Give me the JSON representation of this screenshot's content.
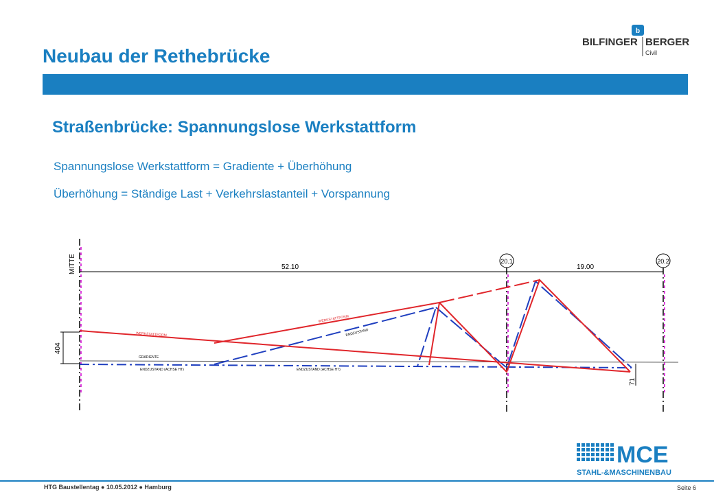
{
  "header": {
    "title": "Neubau der Rethebrücke",
    "logo_top": "BILFINGER",
    "logo_top2": "BERGER",
    "logo_sub": "Civil"
  },
  "content": {
    "subtitle": "Straßenbrücke: Spannungslose Werkstattform",
    "line1": "Spannungslose Werkstattform = Gradiente + Überhöhung",
    "line2": "Überhöhung = Ständige Last + Verkehrslastanteil + Vorspannung"
  },
  "diagram": {
    "mitte_label": "MITTE",
    "dim_left": "52.10",
    "dim_right": "19.00",
    "axis_201": "20.1",
    "axis_202": "20.2",
    "dim_404": "404",
    "dim_71": "71",
    "label_werkstattform_1": "WERKSTATTFORM",
    "label_werkstattform_2": "WERKSTATTFORM",
    "label_endzustand_1": "ENDZUSTAND",
    "label_gradiente": "GRADIENTE",
    "label_endzustand_achse_1": "ENDZUSTAND (ACHSE HT)",
    "label_endzustand_achse_2": "ENDZUSTAND (ACHSE HT)",
    "colors": {
      "red": "#e0262b",
      "blue": "#1f3fbf",
      "magenta": "#d400d4"
    }
  },
  "footer": {
    "left": "HTG Baustellentag ● 10.05.2012 ● Hamburg",
    "page": "Seite 6"
  },
  "mce": {
    "brand": "MCE",
    "sub": "STAHL-&MASCHINENBAU"
  }
}
